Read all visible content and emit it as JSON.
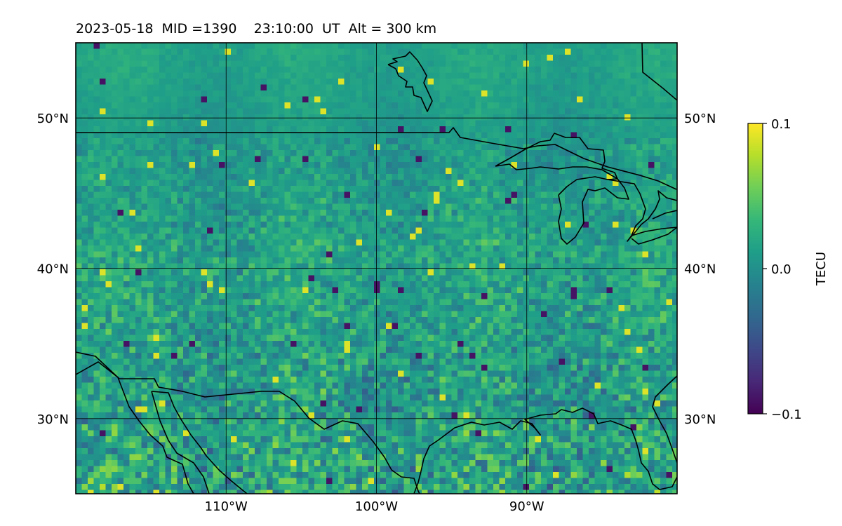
{
  "title": "2023-05-18  MID =1390    23:10:00  UT  Alt = 300 km",
  "map": {
    "lon_range": [
      -120,
      -80
    ],
    "lat_range": [
      25,
      55
    ],
    "lon_ticks": [
      {
        "value": -110,
        "label": "110°W"
      },
      {
        "value": -100,
        "label": "100°W"
      },
      {
        "value": -90,
        "label": "90°W"
      }
    ],
    "lat_ticks": [
      {
        "value": 50,
        "label": "50°N"
      },
      {
        "value": 40,
        "label": "40°N"
      },
      {
        "value": 30,
        "label": "30°N"
      }
    ],
    "colormap": "viridis",
    "grid": true
  },
  "colorbar": {
    "label": "TECU",
    "min": -0.1,
    "max": 0.1,
    "ticks": [
      {
        "value": 0.1,
        "label": "0.1"
      },
      {
        "value": 0.0,
        "label": "0.0"
      },
      {
        "value": -0.1,
        "label": "−0.1"
      }
    ],
    "colors": [
      "#440154",
      "#482878",
      "#3e4989",
      "#31688e",
      "#26828e",
      "#1f9e89",
      "#35b779",
      "#6ece58",
      "#b5de2b",
      "#fde725"
    ]
  }
}
